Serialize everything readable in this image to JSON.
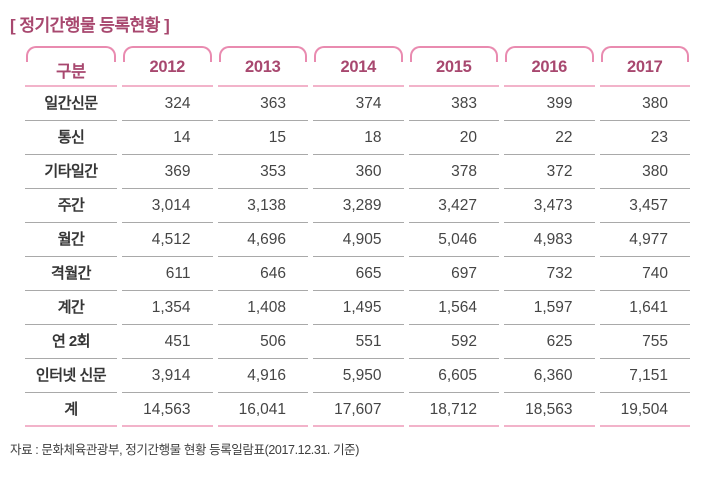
{
  "title": "[ 정기간행물 등록현황 ]",
  "footer": {
    "source_note": "자료 : 문화체육관광부, 정기간행물 현황 등록일람표(2017.12.31. 기준)"
  },
  "colors": {
    "title_text": "#a8486f",
    "header_bracket": "#e98bb0",
    "pink_rule": "#f2b3ca",
    "row_rule": "#a9a9a9",
    "body_text": "#454545"
  },
  "chart_data": {
    "type": "table",
    "title": "정기간행물 등록현황",
    "columns": [
      "구분",
      "2012",
      "2013",
      "2014",
      "2015",
      "2016",
      "2017"
    ],
    "rows": [
      {
        "label": "일간신문",
        "values": [
          "324",
          "363",
          "374",
          "383",
          "399",
          "380"
        ]
      },
      {
        "label": "통신",
        "values": [
          "14",
          "15",
          "18",
          "20",
          "22",
          "23"
        ]
      },
      {
        "label": "기타일간",
        "values": [
          "369",
          "353",
          "360",
          "378",
          "372",
          "380"
        ]
      },
      {
        "label": "주간",
        "values": [
          "3,014",
          "3,138",
          "3,289",
          "3,427",
          "3,473",
          "3,457"
        ]
      },
      {
        "label": "월간",
        "values": [
          "4,512",
          "4,696",
          "4,905",
          "5,046",
          "4,983",
          "4,977"
        ]
      },
      {
        "label": "격월간",
        "values": [
          "611",
          "646",
          "665",
          "697",
          "732",
          "740"
        ]
      },
      {
        "label": "계간",
        "values": [
          "1,354",
          "1,408",
          "1,495",
          "1,564",
          "1,597",
          "1,641"
        ]
      },
      {
        "label": "연 2회",
        "values": [
          "451",
          "506",
          "551",
          "592",
          "625",
          "755"
        ]
      },
      {
        "label": "인터넷 신문",
        "values": [
          "3,914",
          "4,916",
          "5,950",
          "6,605",
          "6,360",
          "7,151"
        ]
      },
      {
        "label": "계",
        "values": [
          "14,563",
          "16,041",
          "17,607",
          "18,712",
          "18,563",
          "19,504"
        ],
        "is_total": true
      }
    ]
  }
}
